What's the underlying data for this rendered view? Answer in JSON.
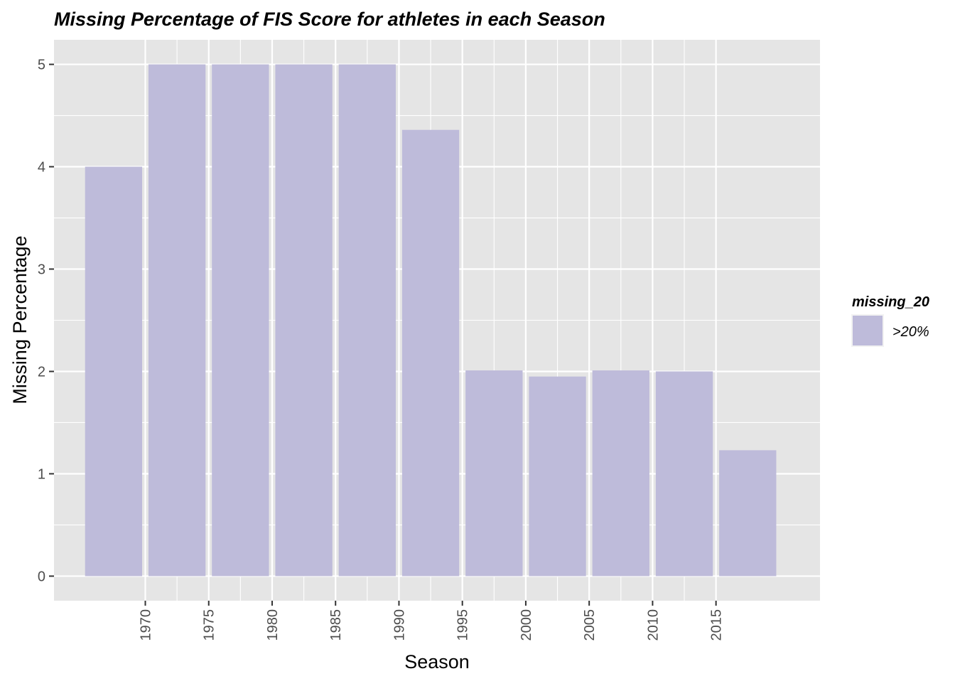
{
  "chart_data": {
    "type": "bar",
    "title": "Missing Percentage of FIS Score for athletes in each Season",
    "xlabel": "Season",
    "ylabel": "Missing Percentage",
    "x": [
      1967.5,
      1972.5,
      1977.5,
      1982.5,
      1987.5,
      1992.5,
      1997.5,
      2002.5,
      2007.5,
      2012.5,
      2017.5
    ],
    "values": [
      4.0,
      5.0,
      5.0,
      5.0,
      5.0,
      4.36,
      2.01,
      1.95,
      2.01,
      2.0,
      1.23
    ],
    "bar_width": 4.5,
    "xlim": [
      1962.8,
      2023.2
    ],
    "ylim": [
      -0.24,
      5.24
    ],
    "x_ticks": [
      1970,
      1975,
      1980,
      1985,
      1990,
      1995,
      2000,
      2005,
      2010,
      2015
    ],
    "y_ticks": [
      0,
      1,
      2,
      3,
      4,
      5
    ],
    "grid": true,
    "legend": {
      "title": "missing_20",
      "placement": "right",
      "entries": [
        {
          "label": ">20%",
          "color": "#bebbda"
        }
      ]
    },
    "colors": {
      "bar": "#bebbda",
      "panel": "#e5e5e5",
      "grid": "#ffffff"
    }
  }
}
